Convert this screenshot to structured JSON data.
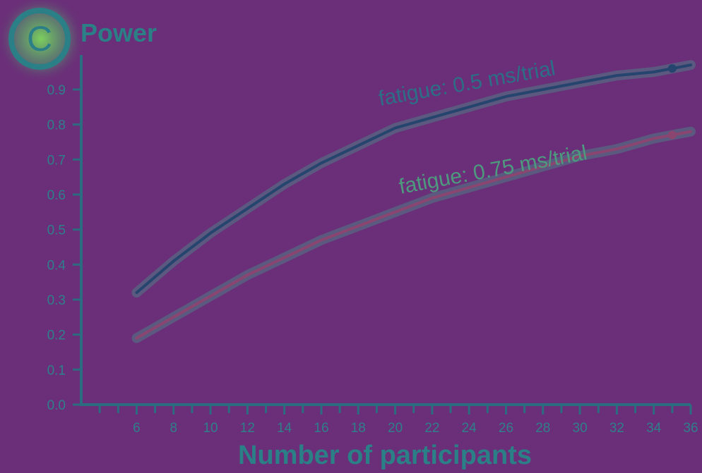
{
  "panel": {
    "badge": "C",
    "title": "Power"
  },
  "colors": {
    "background": "#6a2f78",
    "axis": "#2c6c80",
    "text": "#2f7f8b",
    "series_0": "#25446e",
    "series_1": "#8a4570",
    "label_0": "#2d6e87",
    "label_1": "#4d9a7e",
    "badge_glow": "#4fbf6a"
  },
  "chart_data": {
    "type": "line",
    "title": "Power",
    "xlabel": "Number of participants",
    "ylabel": "Power",
    "xlim": [
      3,
      36
    ],
    "ylim": [
      0,
      1
    ],
    "grid": false,
    "x_ticks": [
      6,
      8,
      10,
      12,
      14,
      16,
      18,
      20,
      22,
      24,
      26,
      28,
      30,
      32,
      34,
      36
    ],
    "y_ticks": [
      "0.0",
      "0.1",
      "0.2",
      "0.3",
      "0.4",
      "0.5",
      "0.6",
      "0.7",
      "0.8",
      "0.9"
    ],
    "series": [
      {
        "name": "fatigue: 0.5 ms/trial",
        "x": [
          6,
          8,
          10,
          12,
          14,
          16,
          18,
          20,
          22,
          24,
          26,
          28,
          30,
          32,
          34,
          36
        ],
        "values": [
          0.32,
          0.41,
          0.49,
          0.56,
          0.63,
          0.69,
          0.74,
          0.79,
          0.82,
          0.85,
          0.88,
          0.9,
          0.92,
          0.94,
          0.95,
          0.97
        ],
        "marker_x": 35,
        "marker_y": 0.96
      },
      {
        "name": "fatigue: 0.75 ms/trial",
        "x": [
          6,
          8,
          10,
          12,
          14,
          16,
          18,
          20,
          22,
          24,
          26,
          28,
          30,
          32,
          34,
          36
        ],
        "values": [
          0.19,
          0.25,
          0.31,
          0.37,
          0.42,
          0.47,
          0.51,
          0.55,
          0.59,
          0.62,
          0.65,
          0.68,
          0.71,
          0.73,
          0.76,
          0.78
        ],
        "marker_x": 35,
        "marker_y": 0.77
      }
    ]
  }
}
